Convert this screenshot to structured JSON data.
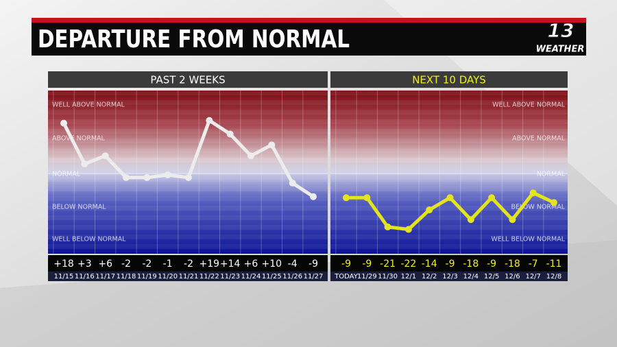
{
  "header": {
    "title": "DEPARTURE FROM NORMAL"
  },
  "logo": {
    "number": "13",
    "text": "WEATHER"
  },
  "chart_data": [
    {
      "type": "line",
      "title": "PAST 2 WEEKS",
      "band_labels": [
        "WELL ABOVE NORMAL",
        "ABOVE NORMAL",
        "NORMAL",
        "BELOW NORMAL",
        "WELL BELOW NORMAL"
      ],
      "categories": [
        "11/15",
        "11/16",
        "11/17",
        "11/18",
        "11/19",
        "11/20",
        "11/21",
        "11/22",
        "11/23",
        "11/24",
        "11/25",
        "11/26",
        "11/27"
      ],
      "values": [
        18,
        3,
        6,
        -2,
        -2,
        -1,
        -2,
        19,
        14,
        6,
        10,
        -4,
        -9
      ],
      "value_labels": [
        "+18",
        "+3",
        "+6",
        "-2",
        "-2",
        "-1",
        "-2",
        "+19",
        "+14",
        "+6",
        "+10",
        "-4",
        "-9"
      ],
      "color": "#ececec",
      "ylim": [
        -30,
        30
      ]
    },
    {
      "type": "line",
      "title": "NEXT 10 DAYS",
      "band_labels": [
        "WELL ABOVE NORMAL",
        "ABOVE NORMAL",
        "NORMAL",
        "BELOW NORMAL",
        "WELL BELOW NORMAL"
      ],
      "categories": [
        "TODAY",
        "11/29",
        "11/30",
        "12/1",
        "12/2",
        "12/3",
        "12/4",
        "12/5",
        "12/6",
        "12/7",
        "12/8"
      ],
      "values": [
        -9,
        -9,
        -21,
        -22,
        -14,
        -9,
        -18,
        -9,
        -18,
        -7,
        -11
      ],
      "color": "#e4e41e",
      "ylim": [
        -32,
        35
      ]
    }
  ]
}
